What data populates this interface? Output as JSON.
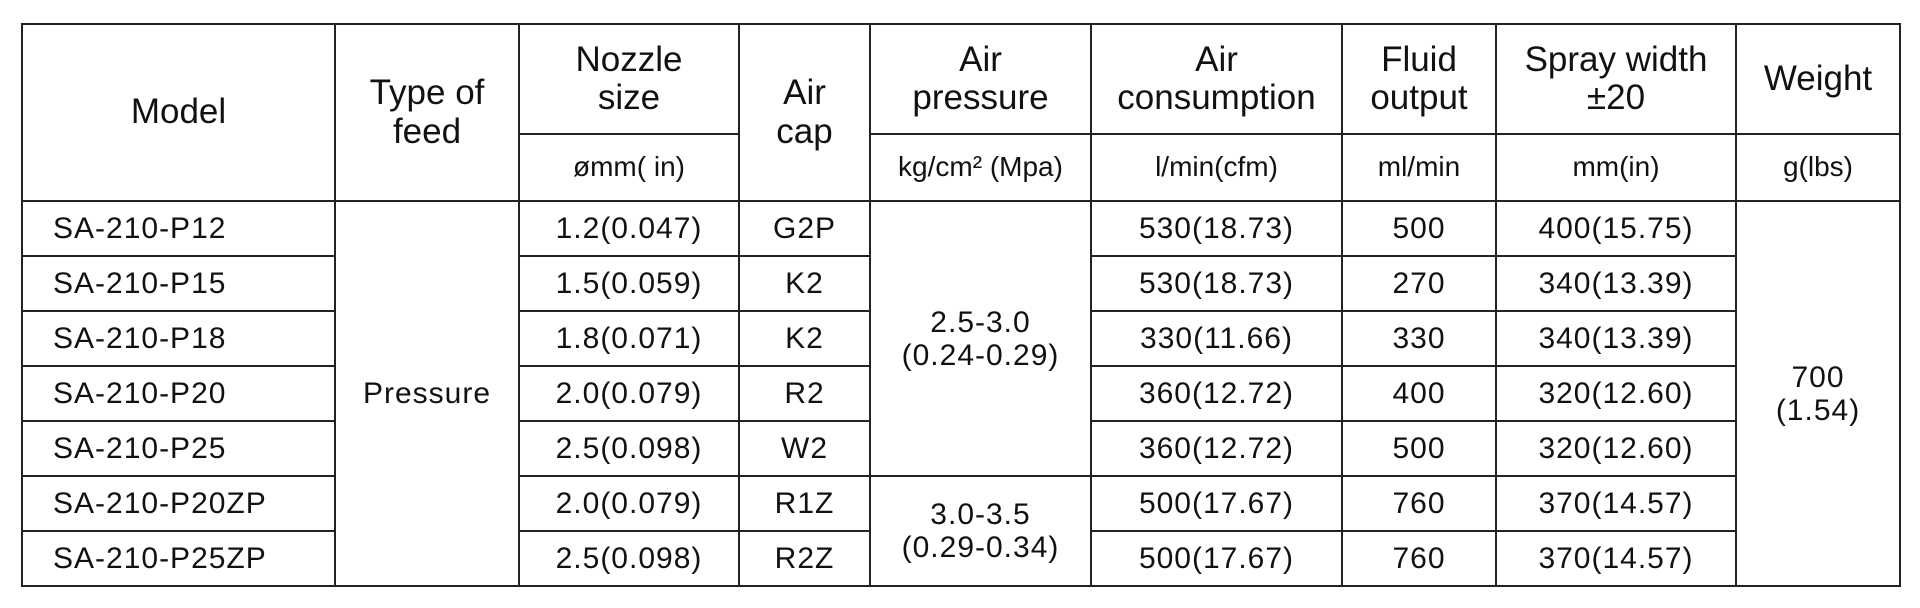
{
  "header": {
    "model": "Model",
    "feed": "Type of\nfeed",
    "nozzle": "Nozzle\nsize",
    "air_cap": "Air\ncap",
    "air_pressure": "Air\npressure",
    "air_consumption": "Air\nconsumption",
    "fluid_output": "Fluid\noutput",
    "spray_width": "Spray width\n±20",
    "weight": "Weight"
  },
  "units": {
    "nozzle": "ømm( in)",
    "air_pressure": "kg/cm² (Mpa)",
    "air_consumption": "l/min(cfm)",
    "fluid_output": "ml/min",
    "spray_width": "mm(in)",
    "weight": "g(lbs)"
  },
  "feed": "Pressure",
  "weight": "700\n(1.54)",
  "air_pressure": [
    "2.5-3.0\n(0.24-0.29)",
    "3.0-3.5\n(0.29-0.34)"
  ],
  "rows": [
    [
      "SA-210-P12",
      "1.2(0.047)",
      "G2P",
      "530(18.73)",
      "500",
      "400(15.75)"
    ],
    [
      "SA-210-P15",
      "1.5(0.059)",
      "K2",
      "530(18.73)",
      "270",
      "340(13.39)"
    ],
    [
      "SA-210-P18",
      "1.8(0.071)",
      "K2",
      "330(11.66)",
      "330",
      "340(13.39)"
    ],
    [
      "SA-210-P20",
      "2.0(0.079)",
      "R2",
      "360(12.72)",
      "400",
      "320(12.60)"
    ],
    [
      "SA-210-P25",
      "2.5(0.098)",
      "W2",
      "360(12.72)",
      "500",
      "320(12.60)"
    ],
    [
      "SA-210-P20ZP",
      "2.0(0.079)",
      "R1Z",
      "500(17.67)",
      "760",
      "370(14.57)"
    ],
    [
      "SA-210-P25ZP",
      "2.5(0.098)",
      "R2Z",
      "500(17.67)",
      "760",
      "370(14.57)"
    ]
  ]
}
